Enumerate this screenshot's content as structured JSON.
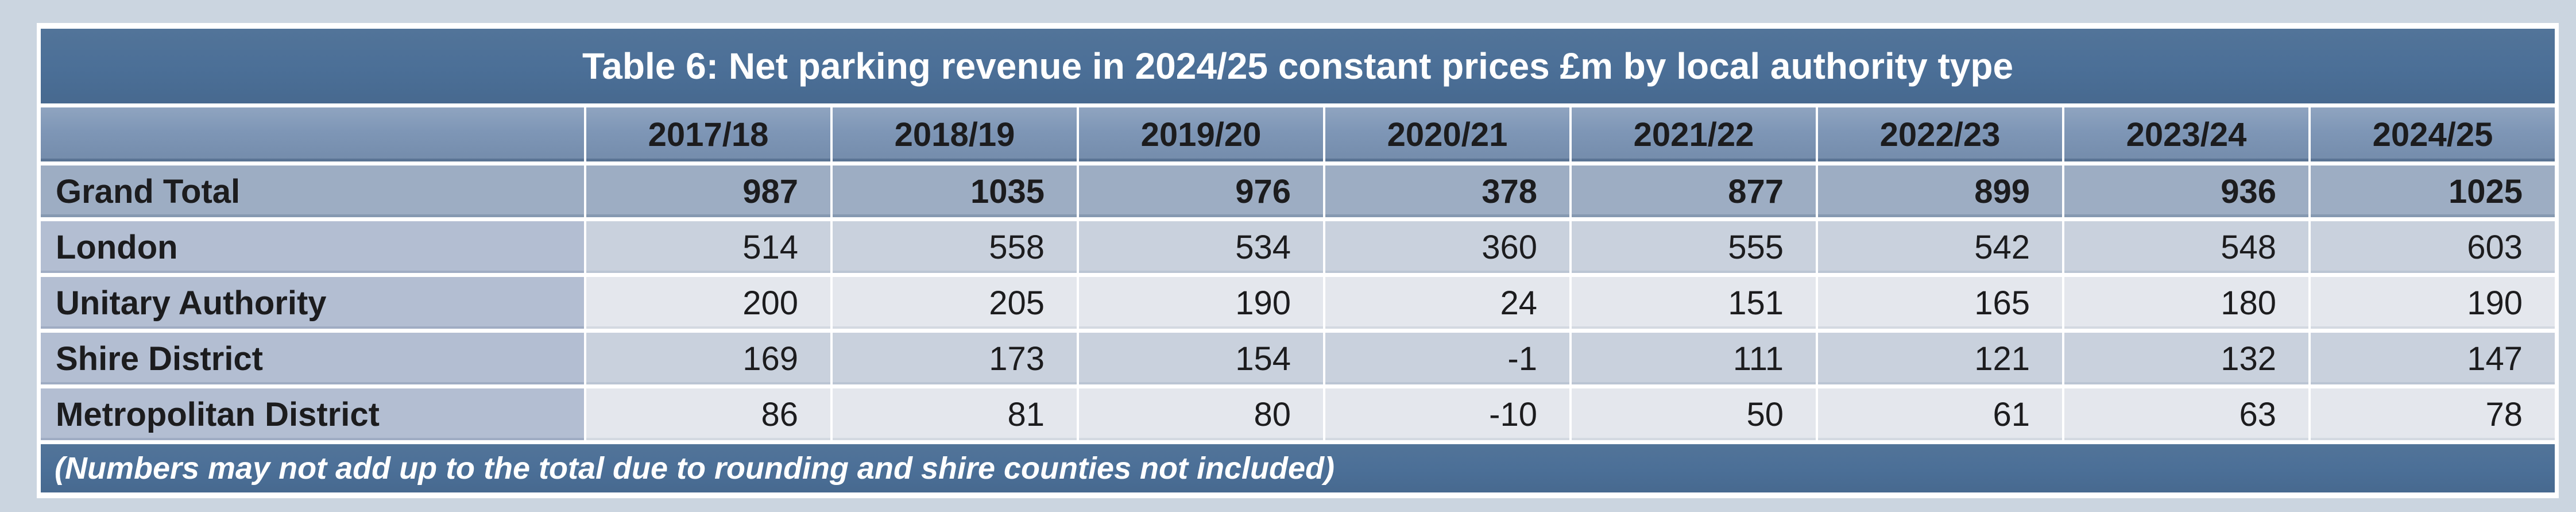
{
  "table": {
    "title": "Table 6: Net parking revenue in 2024/25 constant prices £m by local authority type",
    "columns": [
      "2017/18",
      "2018/19",
      "2019/20",
      "2020/21",
      "2021/22",
      "2022/23",
      "2023/24",
      "2024/25"
    ],
    "rows": [
      {
        "label": "Grand Total",
        "values": [
          987,
          1035,
          976,
          378,
          877,
          899,
          936,
          1025
        ]
      },
      {
        "label": "London",
        "values": [
          514,
          558,
          534,
          360,
          555,
          542,
          548,
          603
        ]
      },
      {
        "label": "Unitary Authority",
        "values": [
          200,
          205,
          190,
          24,
          151,
          165,
          180,
          190
        ]
      },
      {
        "label": "Shire District",
        "values": [
          169,
          173,
          154,
          -1,
          111,
          121,
          132,
          147
        ]
      },
      {
        "label": "Metropolitan District",
        "values": [
          86,
          81,
          80,
          -10,
          50,
          61,
          63,
          78
        ]
      }
    ],
    "footnote": "(Numbers may not add up to the total due to rounding and shire counties not included)"
  },
  "colors": {
    "page_bg": "#cbd5e0",
    "bar_bg": "#4b6f97",
    "header_bg": "#7e96b6",
    "total_bg": "#9dadc3",
    "label_bg": "#b3bed2",
    "row_mid": "#c9d1dd",
    "row_light": "#e4e7ed",
    "grid": "#ffffff",
    "ink": "#1c1c1e",
    "ink_light": "#ffffff"
  },
  "chart_data": {
    "type": "table",
    "title": "Table 6: Net parking revenue in 2024/25 constant prices £m by local authority type",
    "categories": [
      "2017/18",
      "2018/19",
      "2019/20",
      "2020/21",
      "2021/22",
      "2022/23",
      "2023/24",
      "2024/25"
    ],
    "series": [
      {
        "name": "Grand Total",
        "values": [
          987,
          1035,
          976,
          378,
          877,
          899,
          936,
          1025
        ]
      },
      {
        "name": "London",
        "values": [
          514,
          558,
          534,
          360,
          555,
          542,
          548,
          603
        ]
      },
      {
        "name": "Unitary Authority",
        "values": [
          200,
          205,
          190,
          24,
          151,
          165,
          180,
          190
        ]
      },
      {
        "name": "Shire District",
        "values": [
          169,
          173,
          154,
          -1,
          111,
          121,
          132,
          147
        ]
      },
      {
        "name": "Metropolitan District",
        "values": [
          86,
          81,
          80,
          -10,
          50,
          61,
          63,
          78
        ]
      }
    ],
    "annotations": [
      "(Numbers may not add up to the total due to rounding and shire counties not included)"
    ],
    "units": "£m, 2024/25 constant prices"
  }
}
